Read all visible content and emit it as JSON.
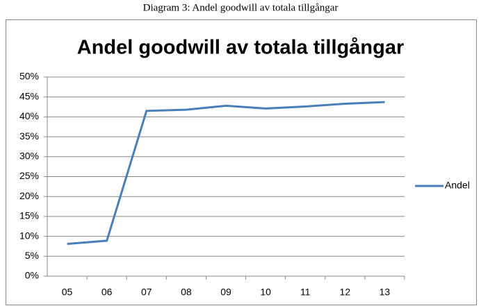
{
  "caption": "Diagram 3: Andel goodwill av totala tillgångar",
  "chart_data": {
    "type": "line",
    "title": "Andel goodwill av totala tillgångar",
    "categories": [
      "05",
      "06",
      "07",
      "08",
      "09",
      "10",
      "11",
      "12",
      "13"
    ],
    "series": [
      {
        "name": "Andel",
        "color": "#4a7ebb",
        "values": [
          8.1,
          8.9,
          41.5,
          41.8,
          42.8,
          42.1,
          42.6,
          43.3,
          43.7
        ]
      }
    ],
    "ylim": [
      0,
      50
    ],
    "yticks": [
      {
        "value": 0,
        "label": "0%"
      },
      {
        "value": 5,
        "label": "5%"
      },
      {
        "value": 10,
        "label": "10%"
      },
      {
        "value": 15,
        "label": "15%"
      },
      {
        "value": 20,
        "label": "20%"
      },
      {
        "value": 25,
        "label": "25%"
      },
      {
        "value": 30,
        "label": "30%"
      },
      {
        "value": 35,
        "label": "35%"
      },
      {
        "value": 40,
        "label": "40%"
      },
      {
        "value": 45,
        "label": "45%"
      },
      {
        "value": 50,
        "label": "50%"
      }
    ],
    "grid": true,
    "legend": "right"
  }
}
